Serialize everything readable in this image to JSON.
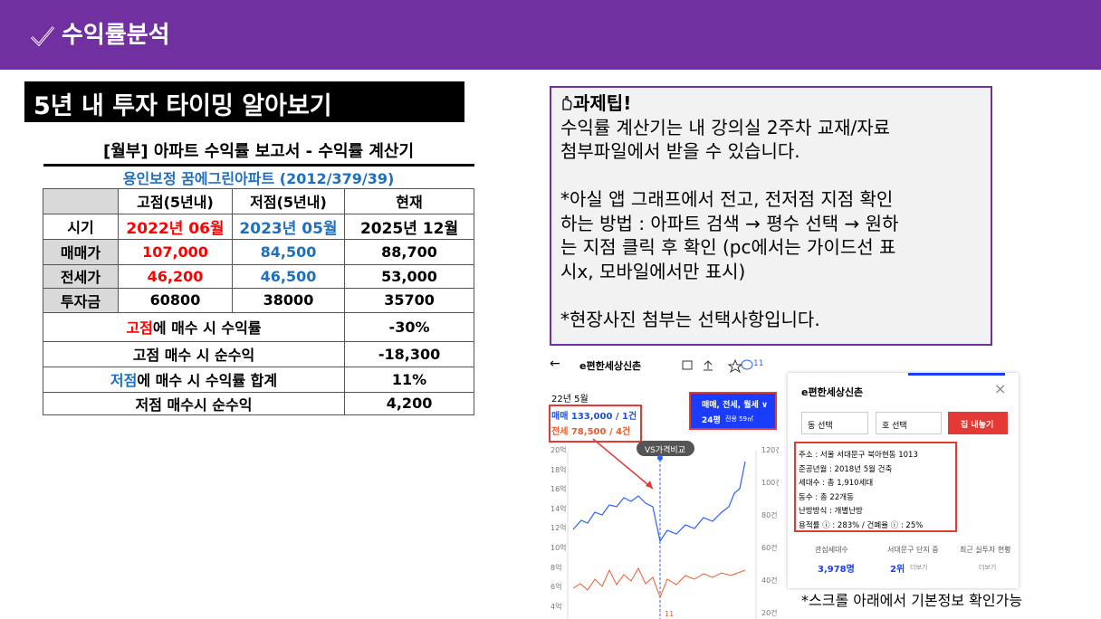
{
  "header": {
    "title": "수익률분석"
  },
  "banner": {
    "title": "5년 내 투자 타이밍 알아보기"
  },
  "table": {
    "title": "[월부] 아파트 수익률 보고서 - 수익률 계산기",
    "subtitle": "용인보정 꿈에그린아파트 (2012/379/39)",
    "columns": [
      "고점(5년내)",
      "저점(5년내)",
      "현재"
    ],
    "rows": [
      [
        "시기",
        "2022년 06월",
        "2023년 05월",
        "2025년 12월"
      ],
      [
        "매매가",
        "107,000",
        "84,500",
        "88,700"
      ],
      [
        "전세가",
        "46,200",
        "46,500",
        "53,000"
      ],
      [
        "투자금",
        "60800",
        "38000",
        "35700"
      ]
    ],
    "summary": [
      {
        "highlight": "고점",
        "label": "에 매수 시 수익률",
        "value": "-30%"
      },
      {
        "label": "고점 매수 시 순수익",
        "value": "-18,300"
      },
      {
        "highlight": "저점",
        "label": "에 매수 시 수익률 합계",
        "value": "11%"
      },
      {
        "label": "저점 매수시 순수익",
        "value": "4,200"
      }
    ]
  },
  "tip": {
    "title": "과제팁!",
    "paragraphs": [
      [
        "수익률 계산기는 내 강의실 2주차 교재/자료",
        "첨부파일에서 받을 수 있습니다."
      ],
      [
        "*아실 앱 그래프에서 전고, 전저점 지점 확인",
        "하는 방법 : 아파트 검색 → 평수 선택 → 원하",
        "는 지점 클릭 후 확인 (pc에서는 가이드선 표",
        "시x, 모바일에서만 표시)"
      ],
      [
        "*현장사진 첨부는 선택사항입니다."
      ]
    ]
  },
  "app_screenshot": {
    "back": "←",
    "title": "e편한세상신촌",
    "comment_count": "11",
    "date": "22년 5월",
    "sale": "매매 133,000 / 1건",
    "jeonse": "전세 78,500 / 4건",
    "filter": "매매, 전세, 월세 ∨",
    "size": "24평",
    "area": "전용 59㎡",
    "compare": "VS가격비교",
    "left_axis": [
      "20억",
      "18억",
      "16억",
      "14억",
      "12억",
      "10억",
      "8억",
      "6억",
      "4억"
    ],
    "right_axis": [
      "120건",
      "100건",
      "80건",
      "60건",
      "40건",
      "20건"
    ],
    "marker": "11"
  },
  "detail_screenshot": {
    "title": "e편한세상신촌",
    "close": "×",
    "dong_select": "동 선택",
    "ho_select": "호 선택",
    "button": "집 내놓기",
    "info": [
      "주소 : 서울 서대문구 북아현동 1013",
      "준공년월 : 2018년 5월 건축",
      "세대수 : 총 1,910세대",
      "동수 : 총 22개동",
      "난방방식 : 개별난방",
      "용적률 ⓘ : 283% / 건폐율 ⓘ : 25%"
    ],
    "stats": [
      {
        "label": "관심세대수",
        "value": "3,978명"
      },
      {
        "label": "서대문구 단지 중",
        "value": "2위",
        "link": "더보기"
      },
      {
        "label": "최근 실투자 현황",
        "link": "더보기"
      }
    ]
  },
  "caption": "*스크롤 아래에서 기본정보 확인가능"
}
